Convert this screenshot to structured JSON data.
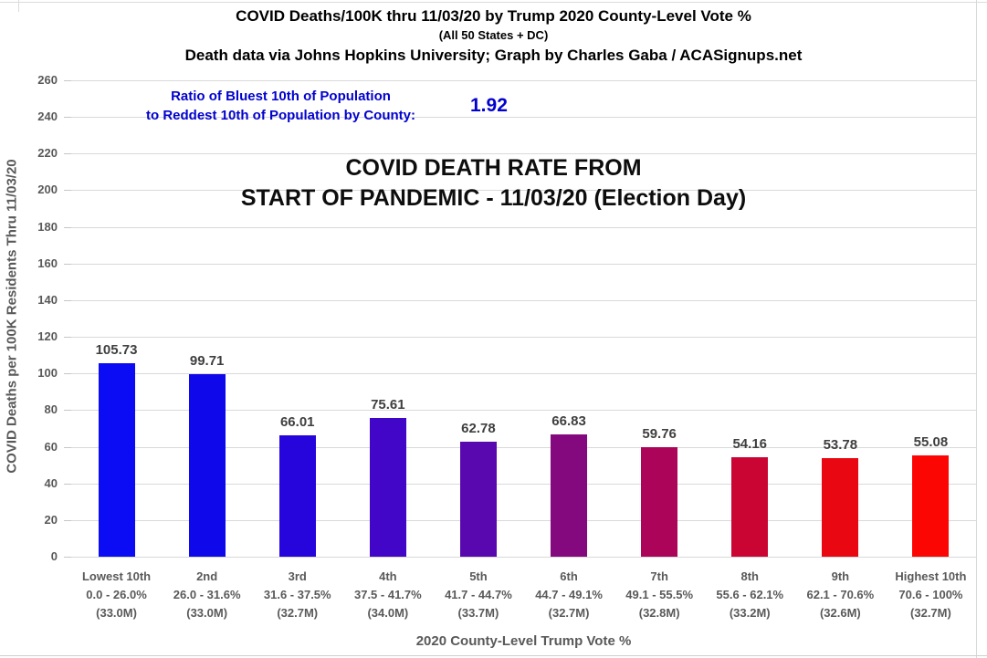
{
  "header": {
    "title": "COVID Deaths/100K thru 11/03/20 by Trump 2020 County-Level Vote %",
    "subtitle": "(All 50 States + DC)",
    "source": "Death data via Johns Hopkins University; Graph by Charles Gaba / ACASignups.net"
  },
  "ratio": {
    "line1": "Ratio of Bluest 10th of Population",
    "line2": "to Reddest 10th of Population by County:",
    "value": "1.92"
  },
  "heading": {
    "line1": "COVID DEATH RATE FROM",
    "line2": "START OF PANDEMIC - 11/03/20 (Election Day)"
  },
  "chart_data": {
    "type": "bar",
    "title": "COVID DEATH RATE FROM START OF PANDEMIC - 11/03/20 (Election Day)",
    "xlabel": "2020 County-Level Trump Vote %",
    "ylabel": "COVID Deaths per 100K Residents Thru 11/03/20",
    "ylim": [
      0,
      260
    ],
    "ytick_step": 20,
    "grid": true,
    "legend": "none",
    "categories": [
      {
        "tier": "Lowest 10th",
        "range": "0.0 - 26.0%",
        "population": "(33.0M)"
      },
      {
        "tier": "2nd",
        "range": "26.0 - 31.6%",
        "population": "(33.0M)"
      },
      {
        "tier": "3rd",
        "range": "31.6 - 37.5%",
        "population": "(32.7M)"
      },
      {
        "tier": "4th",
        "range": "37.5 - 41.7%",
        "population": "(34.0M)"
      },
      {
        "tier": "5th",
        "range": "41.7 - 44.7%",
        "population": "(33.7M)"
      },
      {
        "tier": "6th",
        "range": "44.7 - 49.1%",
        "population": "(32.7M)"
      },
      {
        "tier": "7th",
        "range": "49.1 - 55.5%",
        "population": "(32.8M)"
      },
      {
        "tier": "8th",
        "range": "55.6 - 62.1%",
        "population": "(33.2M)"
      },
      {
        "tier": "9th",
        "range": "62.1 - 70.6%",
        "population": "(32.6M)"
      },
      {
        "tier": "Highest 10th",
        "range": "70.6 - 100%",
        "population": "(32.7M)"
      }
    ],
    "values": [
      105.73,
      99.71,
      66.01,
      75.61,
      62.78,
      66.83,
      59.76,
      54.16,
      53.78,
      55.08
    ],
    "bar_colors": [
      "#0b0bf4",
      "#0e08ea",
      "#2505dc",
      "#4206c8",
      "#5907ae",
      "#84087e",
      "#ab0459",
      "#cb0533",
      "#e90712",
      "#fb0603"
    ],
    "colors": {
      "grid": "#d9d9d9",
      "axis_text": "#595959",
      "value_label": "#3f3f3f",
      "ratio_blue": "#0202cf",
      "heading_text": "#0d0d0d"
    }
  }
}
